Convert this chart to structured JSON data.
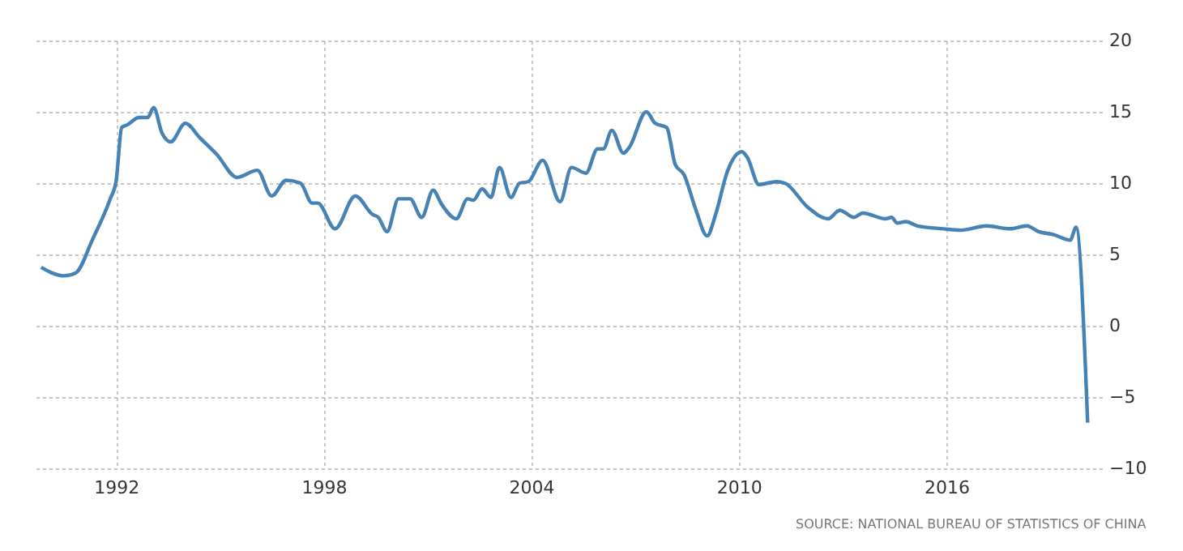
{
  "chart_data": {
    "type": "line",
    "x": [
      "1989-11",
      "1990-07",
      "1990-11",
      "1991-05",
      "1991-11",
      "1992-01",
      "1992-03",
      "1992-05",
      "1992-09",
      "1992-12",
      "1993-02",
      "1993-05",
      "1993-08",
      "1994-01",
      "1994-06",
      "1994-12",
      "1995-07",
      "1996-02",
      "1996-07",
      "1996-12",
      "1997-05",
      "1997-09",
      "1997-11",
      "1998-05",
      "1998-12",
      "1999-06",
      "1999-08",
      "1999-11",
      "2000-03",
      "2000-07",
      "2000-11",
      "2001-03",
      "2001-06",
      "2001-11",
      "2002-03",
      "2002-05",
      "2002-08",
      "2002-11",
      "2003-02",
      "2003-06",
      "2003-09",
      "2003-12",
      "2004-05",
      "2004-11",
      "2005-03",
      "2005-08",
      "2005-12",
      "2006-02",
      "2006-05",
      "2006-09",
      "2006-11",
      "2007-05",
      "2007-08",
      "2007-12",
      "2008-03",
      "2008-06",
      "2008-10",
      "2009-02",
      "2009-05",
      "2009-09",
      "2010-02",
      "2010-04",
      "2010-08",
      "2011-02",
      "2011-05",
      "2012-01",
      "2012-08",
      "2012-12",
      "2013-05",
      "2013-08",
      "2014-04",
      "2014-06",
      "2014-08",
      "2014-11",
      "2015-03",
      "2015-12",
      "2016-06",
      "2017-03",
      "2017-11",
      "2018-05",
      "2018-09",
      "2019-02",
      "2019-08",
      "2019-10",
      "2020-02"
    ],
    "series": [
      {
        "color": "#4682b4",
        "values": [
          4.1,
          3.5,
          3.7,
          6.1,
          8.9,
          10.1,
          13.9,
          14.1,
          14.6,
          14.6,
          15.3,
          13.5,
          12.9,
          14.2,
          13.2,
          12.0,
          10.4,
          10.9,
          9.1,
          10.2,
          10.0,
          8.6,
          8.6,
          6.8,
          9.1,
          7.8,
          7.6,
          6.6,
          8.9,
          8.9,
          7.6,
          9.5,
          8.5,
          7.5,
          8.9,
          8.8,
          9.6,
          9.0,
          11.1,
          9.0,
          10.0,
          10.1,
          11.6,
          8.7,
          11.1,
          10.7,
          12.4,
          12.4,
          13.7,
          12.1,
          12.5,
          15.0,
          14.2,
          13.9,
          11.3,
          10.6,
          8.2,
          6.3,
          7.8,
          10.8,
          12.2,
          11.8,
          9.9,
          10.1,
          10.0,
          8.3,
          7.5,
          8.1,
          7.6,
          7.9,
          7.5,
          7.6,
          7.2,
          7.3,
          7.0,
          6.8,
          6.7,
          7.0,
          6.8,
          7.0,
          6.6,
          6.4,
          6.0,
          6.9,
          -6.8
        ]
      }
    ],
    "xlim": [
      "1989-08",
      "2020-07"
    ],
    "xticks": [
      "1992",
      "1998",
      "2004",
      "2010",
      "2016"
    ],
    "ylim": [
      -10,
      20
    ],
    "yticks": [
      -10,
      -5,
      0,
      5,
      10,
      15,
      20
    ],
    "grid": true,
    "marker": "none",
    "line_style": "solid",
    "annotations": [
      "SOURCE: NATIONAL BUREAU OF STATISTICS OF CHINA"
    ]
  }
}
